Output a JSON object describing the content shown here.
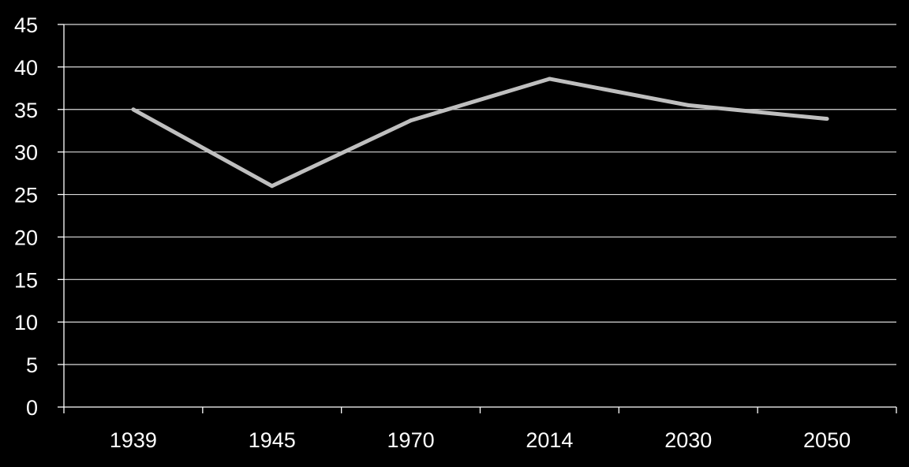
{
  "chart_data": {
    "type": "line",
    "categories": [
      "1939",
      "1945",
      "1970",
      "2014",
      "2030",
      "2050"
    ],
    "series": [
      {
        "values": [
          35,
          26,
          33.7,
          38.6,
          35.5,
          33.9
        ]
      }
    ],
    "ylim": [
      0,
      45
    ],
    "yticks": [
      0,
      5,
      10,
      15,
      20,
      25,
      30,
      35,
      40,
      45
    ],
    "grid": true,
    "legend": "none"
  },
  "colors": {
    "background": "#000000",
    "line": "#bfbfbf",
    "grid": "#d9d9d9",
    "axis": "#ffffff",
    "text": "#ffffff"
  }
}
